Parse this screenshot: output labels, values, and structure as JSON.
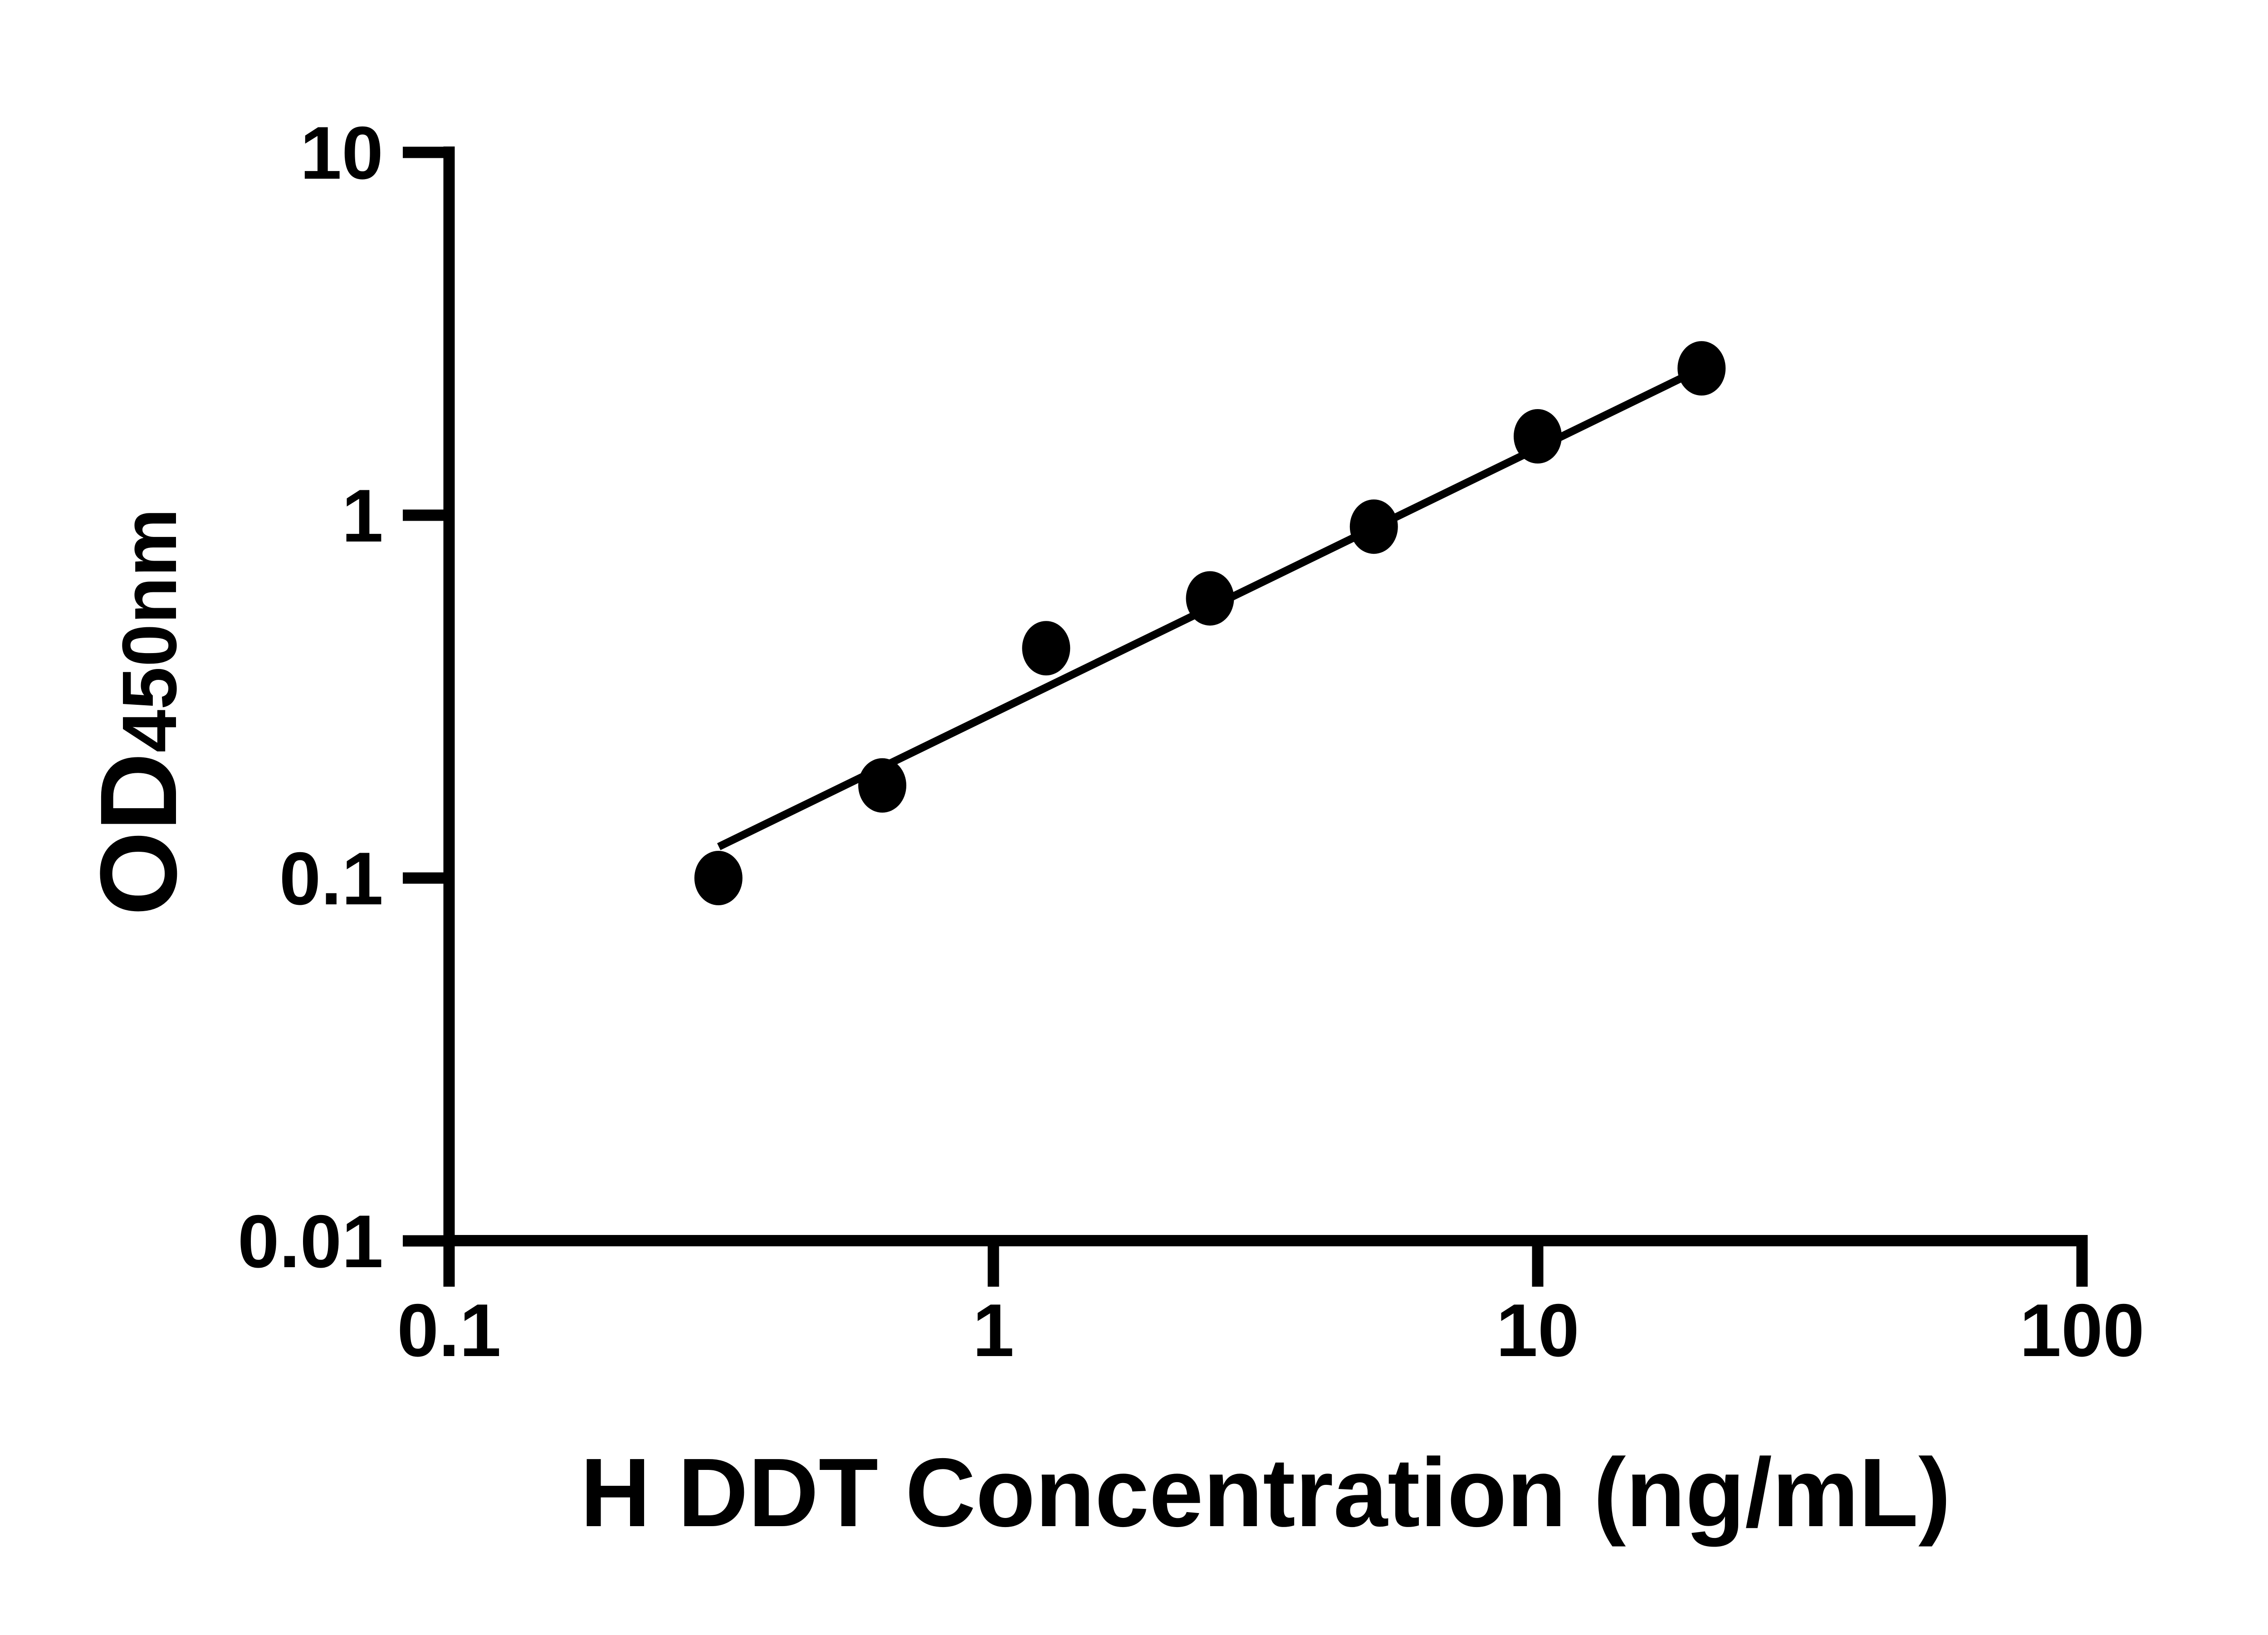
{
  "figure": {
    "background": "#ffffff",
    "ink_color": "#000000"
  },
  "chart_data": {
    "type": "scatter",
    "title": "",
    "xlabel": "H DDT Concentration (ng/mL)",
    "ylabel": "OD450nm",
    "ylabel_parts": {
      "main": "OD",
      "sub": "450nm"
    },
    "x_scale": "log",
    "y_scale": "log",
    "xlim": [
      0.1,
      100
    ],
    "ylim": [
      0.01,
      10
    ],
    "grid": false,
    "legend": "none",
    "x_ticks": [
      {
        "value": 0.1,
        "label": "0.1"
      },
      {
        "value": 1,
        "label": "1"
      },
      {
        "value": 10,
        "label": "10"
      },
      {
        "value": 100,
        "label": "100"
      }
    ],
    "y_ticks": [
      {
        "value": 0.01,
        "label": "0.01"
      },
      {
        "value": 0.1,
        "label": "0.1"
      },
      {
        "value": 1,
        "label": "1"
      },
      {
        "value": 10,
        "label": "10"
      }
    ],
    "series": [
      {
        "name": "standard-curve-points",
        "marker": "filled-circle",
        "color": "#000000",
        "points": [
          {
            "x": 0.3125,
            "y": 0.1
          },
          {
            "x": 0.625,
            "y": 0.18
          },
          {
            "x": 1.25,
            "y": 0.43
          },
          {
            "x": 2.5,
            "y": 0.59
          },
          {
            "x": 5,
            "y": 0.93
          },
          {
            "x": 10,
            "y": 1.65
          },
          {
            "x": 20,
            "y": 2.54
          }
        ]
      }
    ],
    "trend_line": {
      "name": "linear-fit-line",
      "color": "#000000",
      "x1": 0.313,
      "y1": 0.122,
      "x2": 20,
      "y2": 2.54
    }
  }
}
